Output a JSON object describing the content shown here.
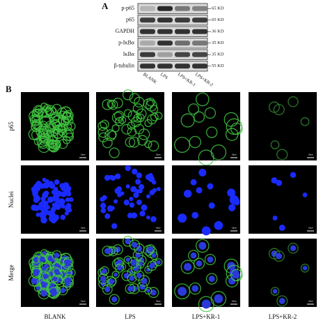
{
  "panel_a": {
    "label": "A",
    "rows": [
      {
        "label": "p-p65",
        "size": "65 KD"
      },
      {
        "label": "p65",
        "size": "65 KD"
      },
      {
        "label": "GAPDH",
        "size": "36 KD"
      },
      {
        "label": "p-IκBα",
        "size": "35 KD"
      },
      {
        "label": "IκBα",
        "size": "35 KD"
      },
      {
        "label": "β-tubulin",
        "size": "55 KD"
      }
    ],
    "lanes": [
      "BLANK",
      "LPS",
      "LPS+KR-1",
      "LPS+KR-2"
    ]
  },
  "panel_b": {
    "label": "B",
    "rows": [
      "p65",
      "Nuclei",
      "Merge"
    ],
    "columns": [
      "BLANK",
      "LPS",
      "LPS+KR-1",
      "LPS+KR-2"
    ],
    "scale_bar": "10μm"
  }
}
